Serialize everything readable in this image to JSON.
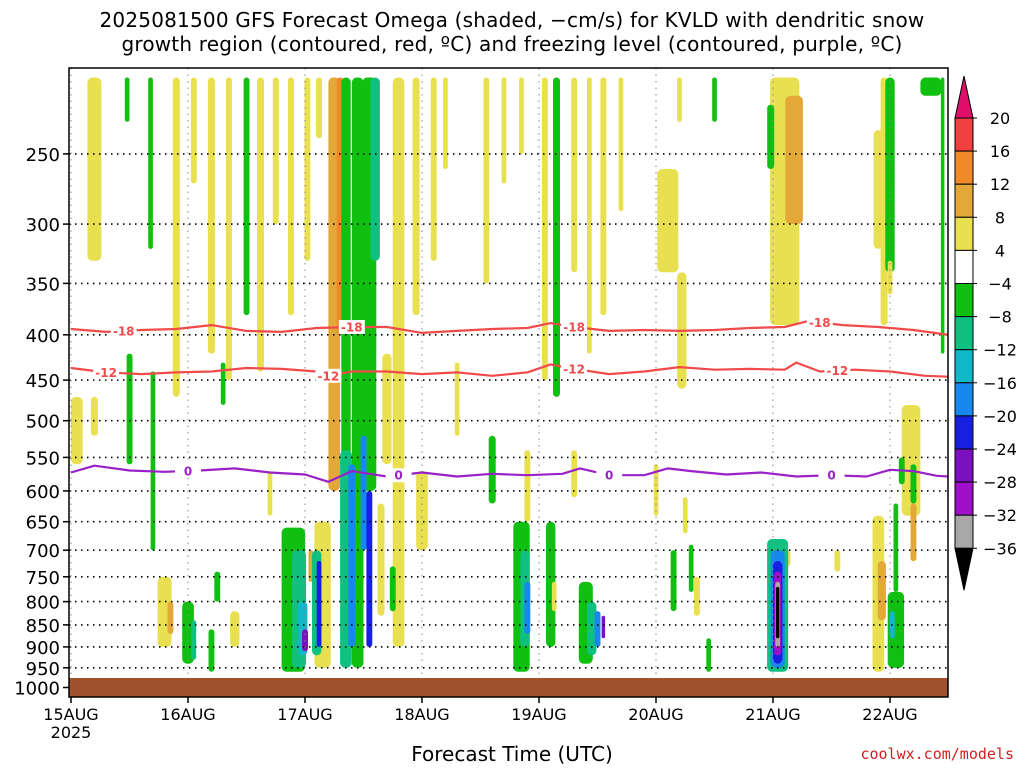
{
  "chart_data": {
    "type": "heatmap",
    "title": "2025081500 GFS Forecast Omega (shaded, −cm/s) for KVLD with dendritic snow",
    "title_line2": "growth region (contoured, red, ºC) and freezing level (contoured, purple, ºC)",
    "xlabel": "Forecast Time (UTC)",
    "ylabel": "",
    "x_ticks": [
      "15AUG",
      "16AUG",
      "17AUG",
      "18AUG",
      "19AUG",
      "20AUG",
      "21AUG",
      "22AUG"
    ],
    "x_year": "2025",
    "x_range_days": [
      0,
      7.5
    ],
    "y_ticks": [
      250,
      300,
      350,
      400,
      450,
      500,
      550,
      600,
      650,
      700,
      750,
      800,
      850,
      900,
      950,
      1000
    ],
    "y_range_hPa": [
      200,
      1025
    ],
    "colorbar": {
      "ticks": [
        "20",
        "16",
        "12",
        "8",
        "4",
        "−4",
        "−8",
        "−12",
        "−16",
        "−20",
        "−24",
        "−28",
        "−32",
        "−36"
      ],
      "colors": [
        "#e0106a",
        "#f04040",
        "#f08a28",
        "#e3a838",
        "#e8e050",
        "#ffffff",
        "#10c010",
        "#10c080",
        "#10b8c8",
        "#1888ee",
        "#1820e0",
        "#7a10c0",
        "#a010c8",
        "#a8a8a8",
        "#000000"
      ]
    },
    "contours": [
      {
        "label": "-18",
        "color": "#f04a4a",
        "label_x_days": [
          0.45,
          2.4,
          4.3,
          6.4
        ],
        "points": [
          [
            0,
            394
          ],
          [
            0.3,
            397
          ],
          [
            0.6,
            395
          ],
          [
            0.9,
            394
          ],
          [
            1.2,
            390
          ],
          [
            1.5,
            396
          ],
          [
            1.8,
            397
          ],
          [
            2.1,
            393
          ],
          [
            2.4,
            392
          ],
          [
            2.7,
            392
          ],
          [
            3.0,
            398
          ],
          [
            3.3,
            396
          ],
          [
            3.6,
            394
          ],
          [
            3.9,
            393
          ],
          [
            4.1,
            388
          ],
          [
            4.3,
            392
          ],
          [
            4.6,
            396
          ],
          [
            4.9,
            395
          ],
          [
            5.2,
            396
          ],
          [
            5.5,
            395
          ],
          [
            5.8,
            393
          ],
          [
            6.1,
            392
          ],
          [
            6.3,
            386
          ],
          [
            6.6,
            390
          ],
          [
            6.9,
            392
          ],
          [
            7.2,
            395
          ],
          [
            7.5,
            400
          ]
        ]
      },
      {
        "label": "-12",
        "color": "#f04a4a",
        "label_x_days": [
          0.3,
          2.2,
          4.3,
          6.55
        ],
        "points": [
          [
            0,
            436
          ],
          [
            0.3,
            441
          ],
          [
            0.6,
            443
          ],
          [
            0.9,
            441
          ],
          [
            1.2,
            440
          ],
          [
            1.5,
            436
          ],
          [
            1.8,
            437
          ],
          [
            2.1,
            440
          ],
          [
            2.2,
            445
          ],
          [
            2.4,
            440
          ],
          [
            2.7,
            440
          ],
          [
            3.0,
            443
          ],
          [
            3.3,
            441
          ],
          [
            3.6,
            445
          ],
          [
            3.9,
            441
          ],
          [
            4.1,
            432
          ],
          [
            4.3,
            437
          ],
          [
            4.6,
            443
          ],
          [
            4.9,
            440
          ],
          [
            5.2,
            435
          ],
          [
            5.5,
            438
          ],
          [
            5.8,
            437
          ],
          [
            6.1,
            438
          ],
          [
            6.2,
            430
          ],
          [
            6.4,
            440
          ],
          [
            6.7,
            438
          ],
          [
            7.0,
            440
          ],
          [
            7.3,
            445
          ],
          [
            7.5,
            446
          ]
        ]
      },
      {
        "label": "0",
        "color": "#9a20c8",
        "label_x_days": [
          1.0,
          2.8,
          4.6,
          6.5
        ],
        "points": [
          [
            0,
            572
          ],
          [
            0.2,
            562
          ],
          [
            0.5,
            569
          ],
          [
            0.8,
            571
          ],
          [
            1.1,
            569
          ],
          [
            1.4,
            566
          ],
          [
            1.7,
            572
          ],
          [
            2.0,
            575
          ],
          [
            2.2,
            586
          ],
          [
            2.4,
            570
          ],
          [
            2.7,
            578
          ],
          [
            3.0,
            572
          ],
          [
            3.3,
            578
          ],
          [
            3.6,
            574
          ],
          [
            3.9,
            576
          ],
          [
            4.2,
            574
          ],
          [
            4.35,
            566
          ],
          [
            4.6,
            576
          ],
          [
            4.9,
            576
          ],
          [
            5.1,
            566
          ],
          [
            5.3,
            570
          ],
          [
            5.6,
            575
          ],
          [
            5.9,
            572
          ],
          [
            6.2,
            578
          ],
          [
            6.5,
            576
          ],
          [
            6.8,
            578
          ],
          [
            7.0,
            568
          ],
          [
            7.2,
            570
          ],
          [
            7.4,
            577
          ],
          [
            7.5,
            578
          ]
        ]
      }
    ],
    "grid": true,
    "legend": "colorbar-right"
  },
  "credit": "coolwx.com/models",
  "colors": {
    "ground": "#a0522d",
    "frame": "#000000",
    "grid": "#000000"
  }
}
